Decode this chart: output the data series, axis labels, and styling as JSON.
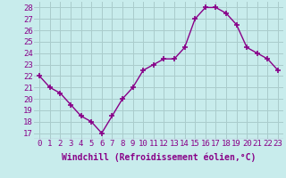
{
  "x": [
    0,
    1,
    2,
    3,
    4,
    5,
    6,
    7,
    8,
    9,
    10,
    11,
    12,
    13,
    14,
    15,
    16,
    17,
    18,
    19,
    20,
    21,
    22,
    23
  ],
  "y": [
    22.0,
    21.0,
    20.5,
    19.5,
    18.5,
    18.0,
    17.0,
    18.5,
    20.0,
    21.0,
    22.5,
    23.0,
    23.5,
    23.5,
    24.5,
    27.0,
    28.0,
    28.0,
    27.5,
    26.5,
    24.5,
    24.0,
    23.5,
    22.5
  ],
  "line_color": "#880088",
  "marker": "+",
  "markersize": 4,
  "markeredgewidth": 1.2,
  "linewidth": 1.0,
  "xlabel": "Windchill (Refroidissement éolien,°C)",
  "xlabel_fontsize": 7,
  "ylabel_ticks": [
    17,
    18,
    19,
    20,
    21,
    22,
    23,
    24,
    25,
    26,
    27,
    28
  ],
  "xlim": [
    -0.5,
    23.5
  ],
  "ylim": [
    16.5,
    28.5
  ],
  "bg_color": "#c8ecec",
  "grid_color": "#aacccc",
  "tick_color": "#880088",
  "tick_fontsize": 6.5,
  "xlabel_color": "#880088"
}
